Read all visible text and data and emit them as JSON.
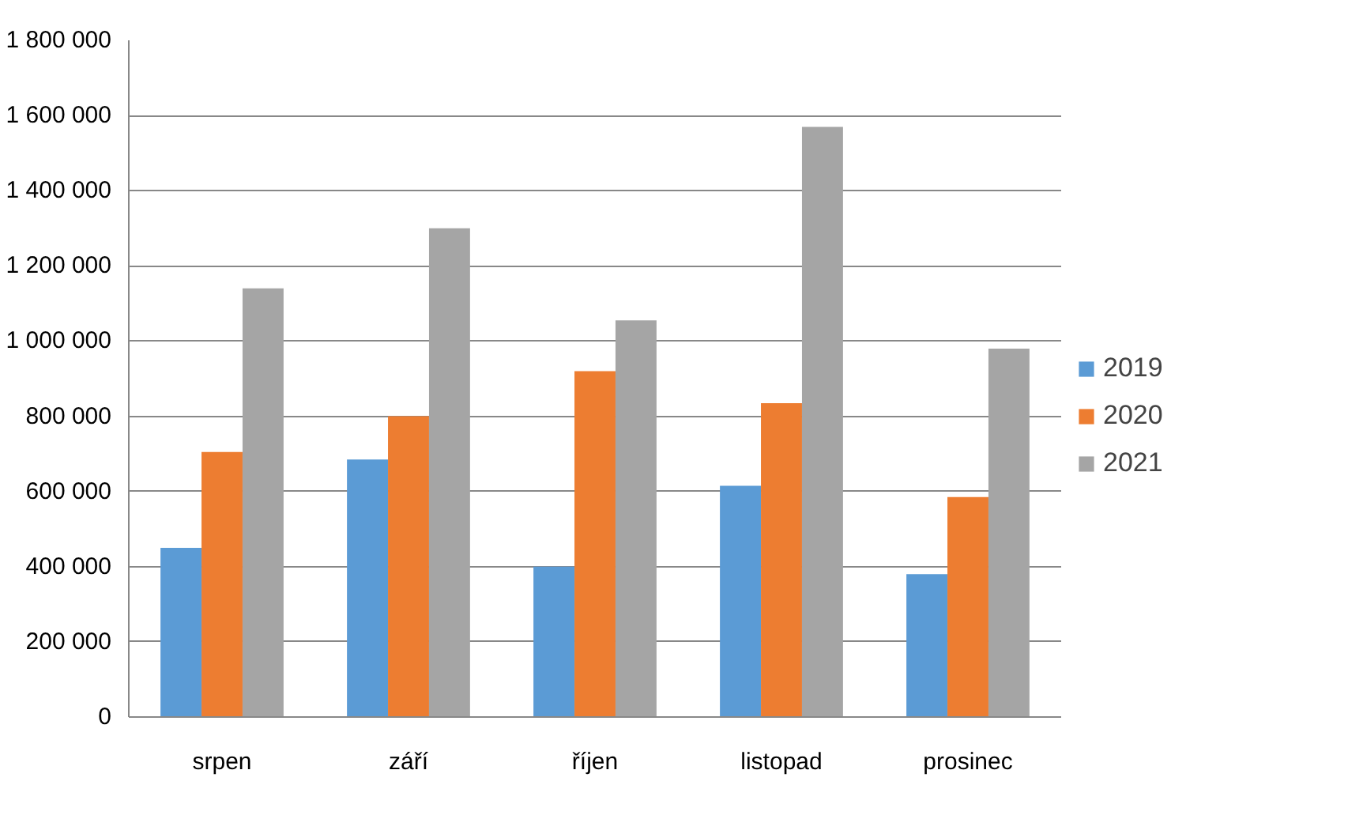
{
  "chart_data": {
    "type": "bar",
    "categories": [
      "srpen",
      "září",
      "říjen",
      "listopad",
      "prosinec"
    ],
    "series": [
      {
        "name": "2019",
        "color": "#5b9bd5",
        "values": [
          450000,
          685000,
          400000,
          615000,
          380000
        ]
      },
      {
        "name": "2020",
        "color": "#ed7d31",
        "values": [
          705000,
          800000,
          920000,
          835000,
          585000
        ]
      },
      {
        "name": "2021",
        "color": "#a5a5a5",
        "values": [
          1140000,
          1300000,
          1055000,
          1570000,
          980000
        ]
      }
    ],
    "ylim": [
      0,
      1800000
    ],
    "yticks": [
      0,
      {
        "value": 200000,
        "label": "200 000"
      },
      {
        "value": 400000,
        "label": "400 000"
      },
      {
        "value": 600000,
        "label": "600 000"
      },
      {
        "value": 800000,
        "label": "800 000"
      },
      {
        "value": 1000000,
        "label": "1 000 000"
      },
      {
        "value": 1200000,
        "label": "1 200 000"
      },
      {
        "value": 1400000,
        "label": "1 400 000"
      },
      {
        "value": 1600000,
        "label": "1 600 000"
      },
      {
        "value": 1800000,
        "label": "1 800 000"
      }
    ],
    "grid": "y",
    "legend": "right"
  }
}
